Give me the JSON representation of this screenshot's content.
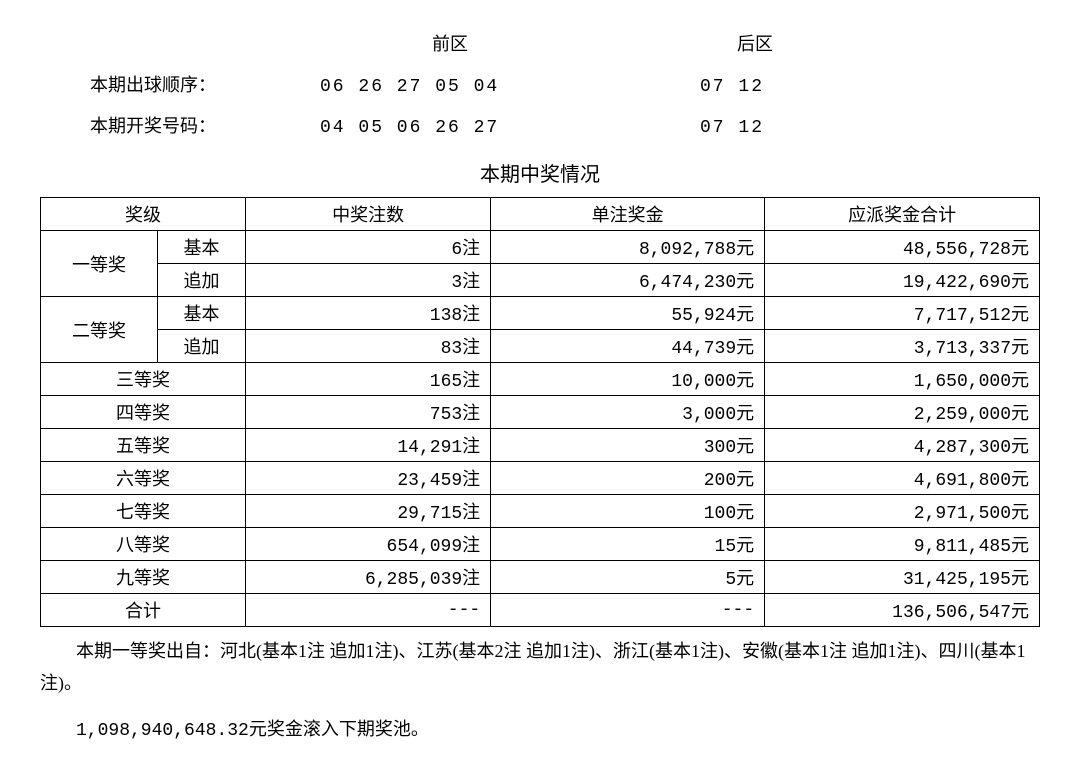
{
  "draw": {
    "headers": {
      "front": "前区",
      "back": "后区"
    },
    "order_label": "本期出球顺序：",
    "order_front": "06 26 27 05 04",
    "order_back": "07 12",
    "win_label": "本期开奖号码：",
    "win_front": "04 05 06 26 27",
    "win_back": "07 12"
  },
  "section_title": "本期中奖情况",
  "table": {
    "headers": {
      "prize": "奖级",
      "count": "中奖注数",
      "unit": "单注奖金",
      "total": "应派奖金合计"
    },
    "tier1_label": "一等奖",
    "tier2_label": "二等奖",
    "sub_basic": "基本",
    "sub_add": "追加",
    "rows": [
      {
        "count": "6注",
        "unit": "8,092,788元",
        "total": "48,556,728元"
      },
      {
        "count": "3注",
        "unit": "6,474,230元",
        "total": "19,422,690元"
      },
      {
        "count": "138注",
        "unit": "55,924元",
        "total": "7,717,512元"
      },
      {
        "count": "83注",
        "unit": "44,739元",
        "total": "3,713,337元"
      }
    ],
    "simple": [
      {
        "label": "三等奖",
        "count": "165注",
        "unit": "10,000元",
        "total": "1,650,000元"
      },
      {
        "label": "四等奖",
        "count": "753注",
        "unit": "3,000元",
        "total": "2,259,000元"
      },
      {
        "label": "五等奖",
        "count": "14,291注",
        "unit": "300元",
        "total": "4,287,300元"
      },
      {
        "label": "六等奖",
        "count": "23,459注",
        "unit": "200元",
        "total": "4,691,800元"
      },
      {
        "label": "七等奖",
        "count": "29,715注",
        "unit": "100元",
        "total": "2,971,500元"
      },
      {
        "label": "八等奖",
        "count": "654,099注",
        "unit": "15元",
        "total": "9,811,485元"
      },
      {
        "label": "九等奖",
        "count": "6,285,039注",
        "unit": "5元",
        "total": "31,425,195元"
      },
      {
        "label": "合计",
        "count": "---",
        "unit": "---",
        "total": "136,506,547元"
      }
    ]
  },
  "footnote": "本期一等奖出自：河北(基本1注 追加1注)、江苏(基本2注 追加1注)、浙江(基本1注)、安徽(基本1注 追加1注)、四川(基本1注)。",
  "rollover_prefix": "1,098,940,648.32",
  "rollover_suffix": "元奖金滚入下期奖池。"
}
